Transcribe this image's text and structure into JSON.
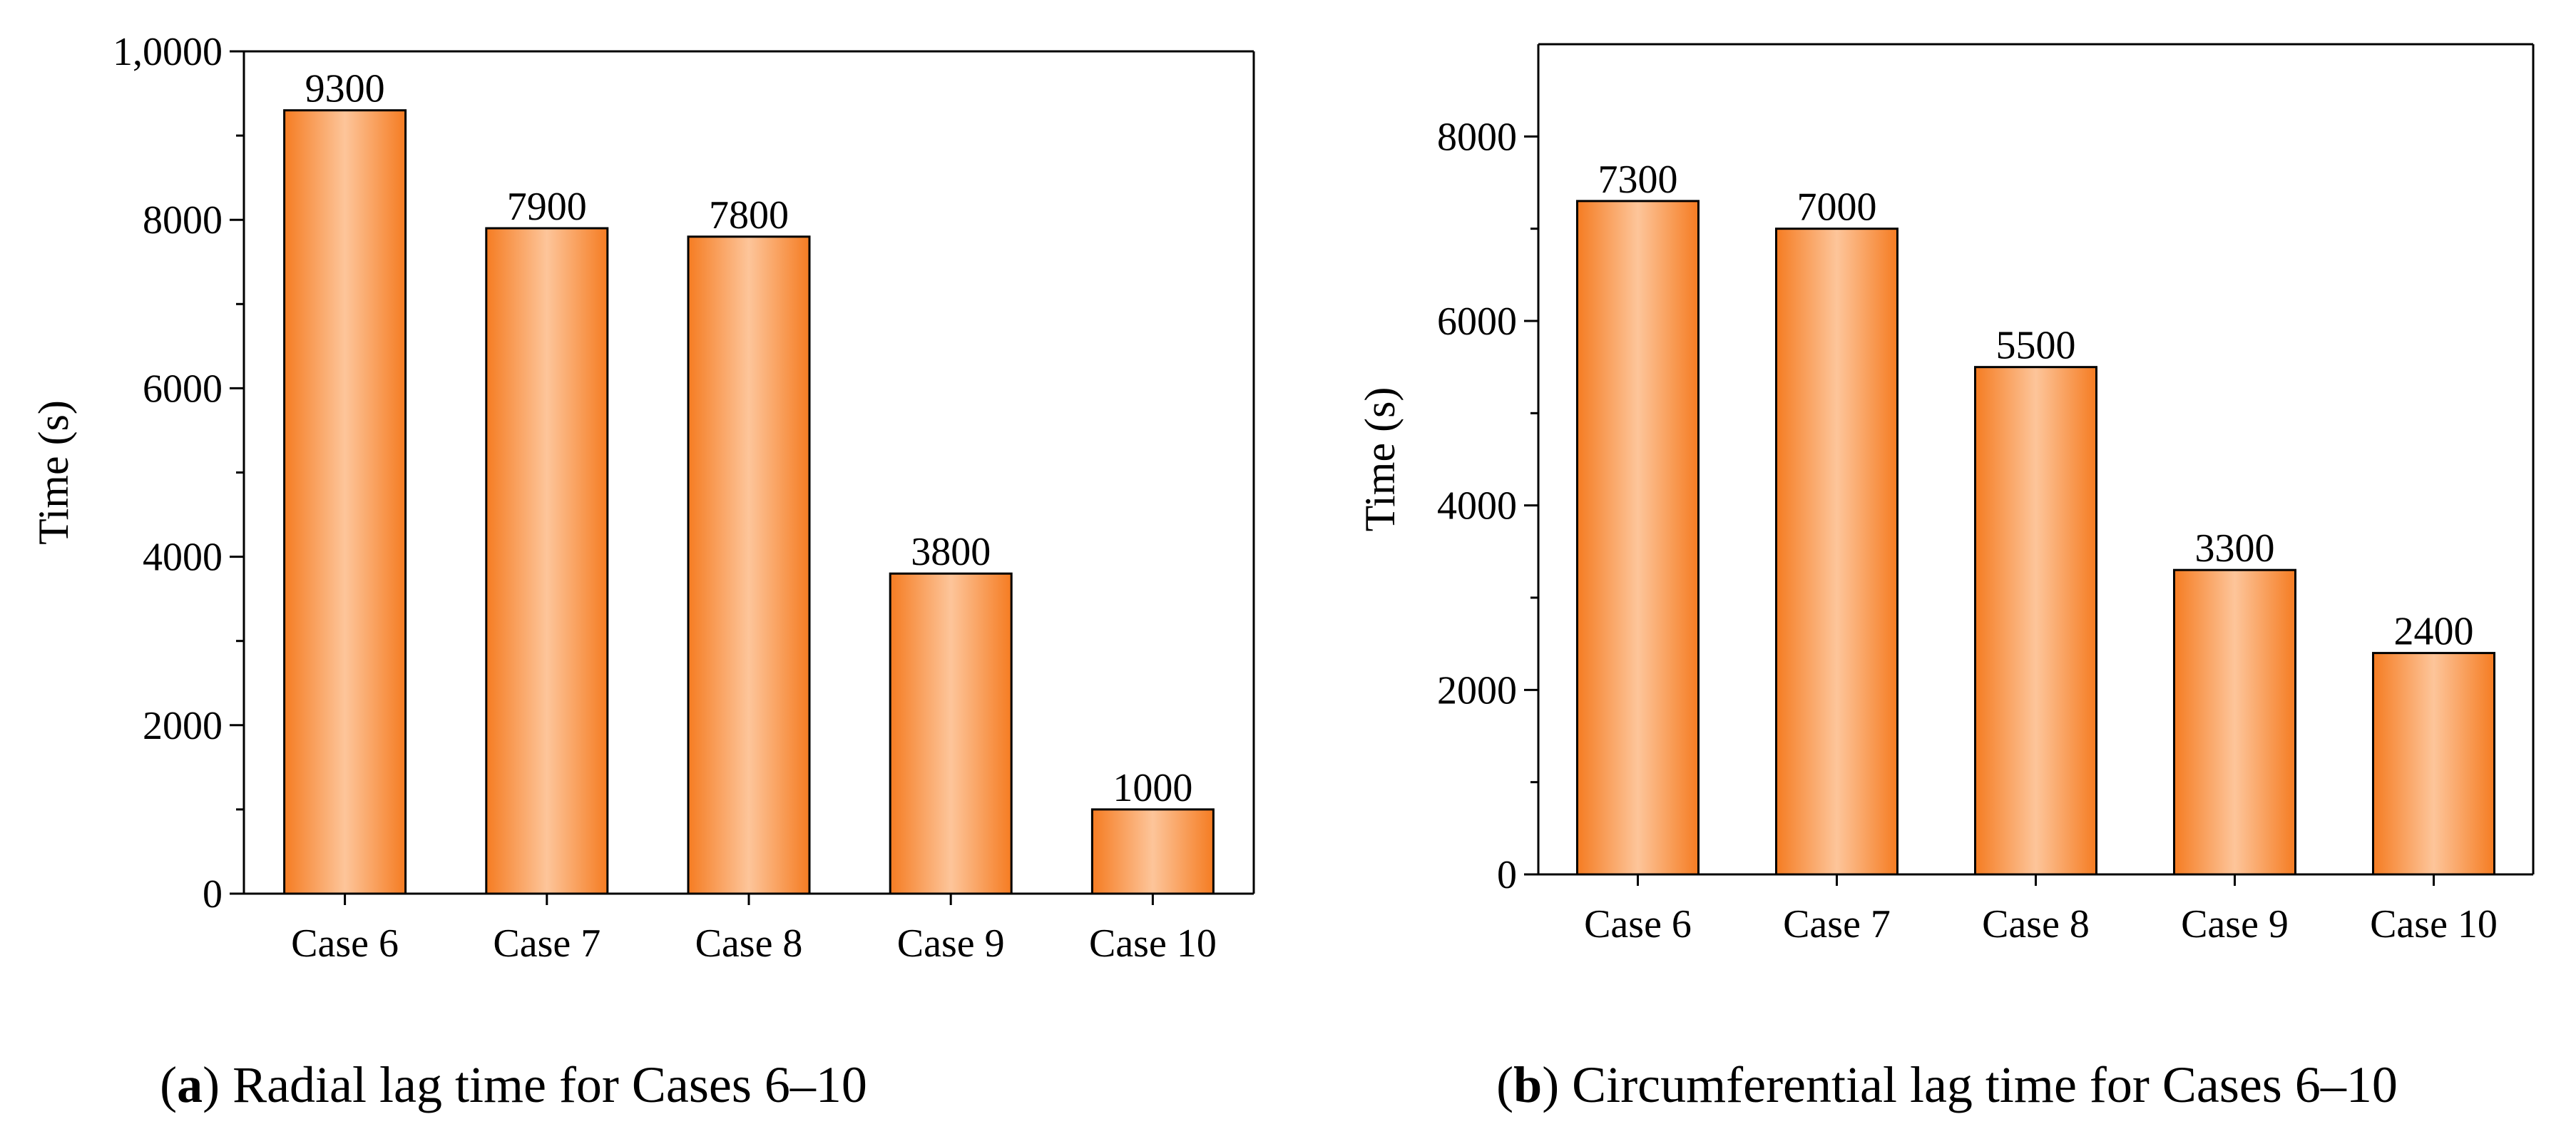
{
  "figure": {
    "panels": [
      {
        "caption_letter": "a",
        "caption_text": ") Radial lag time for Cases 6–10",
        "caption_open": "("
      },
      {
        "caption_letter": "b",
        "caption_text": ") Circumferential lag time for Cases 6–10",
        "caption_open": "("
      }
    ]
  },
  "colors": {
    "bar_edge": "#f57c22",
    "bar_center": "#fdc59a",
    "axis": "#000000"
  },
  "chart_data": [
    {
      "type": "bar",
      "title": "Radial lag time for Cases 6–10",
      "xlabel": "",
      "ylabel": "Time (s)",
      "categories": [
        "Case 6",
        "Case 7",
        "Case 8",
        "Case 9",
        "Case 10"
      ],
      "values": [
        9300,
        7900,
        7800,
        3800,
        1000
      ],
      "data_labels": [
        "9300",
        "7900",
        "7800",
        "3800",
        "1000"
      ],
      "ylim": [
        0,
        10000
      ],
      "yticks": [
        0,
        2000,
        4000,
        6000,
        8000,
        10000
      ],
      "ytick_labels": [
        "0",
        "2000",
        "4000",
        "6000",
        "8000",
        "1,0000"
      ],
      "grid": false
    },
    {
      "type": "bar",
      "title": "Circumferential lag time for Cases 6–10",
      "xlabel": "",
      "ylabel": "Time (s)",
      "categories": [
        "Case 6",
        "Case 7",
        "Case 8",
        "Case 9",
        "Case 10"
      ],
      "values": [
        7300,
        7000,
        5500,
        3300,
        2400
      ],
      "data_labels": [
        "7300",
        "7000",
        "5500",
        "3300",
        "2400"
      ],
      "ylim": [
        0,
        9000
      ],
      "yticks": [
        0,
        2000,
        4000,
        6000,
        8000
      ],
      "ytick_labels": [
        "0",
        "2000",
        "4000",
        "6000",
        "8000"
      ],
      "grid": false
    }
  ]
}
